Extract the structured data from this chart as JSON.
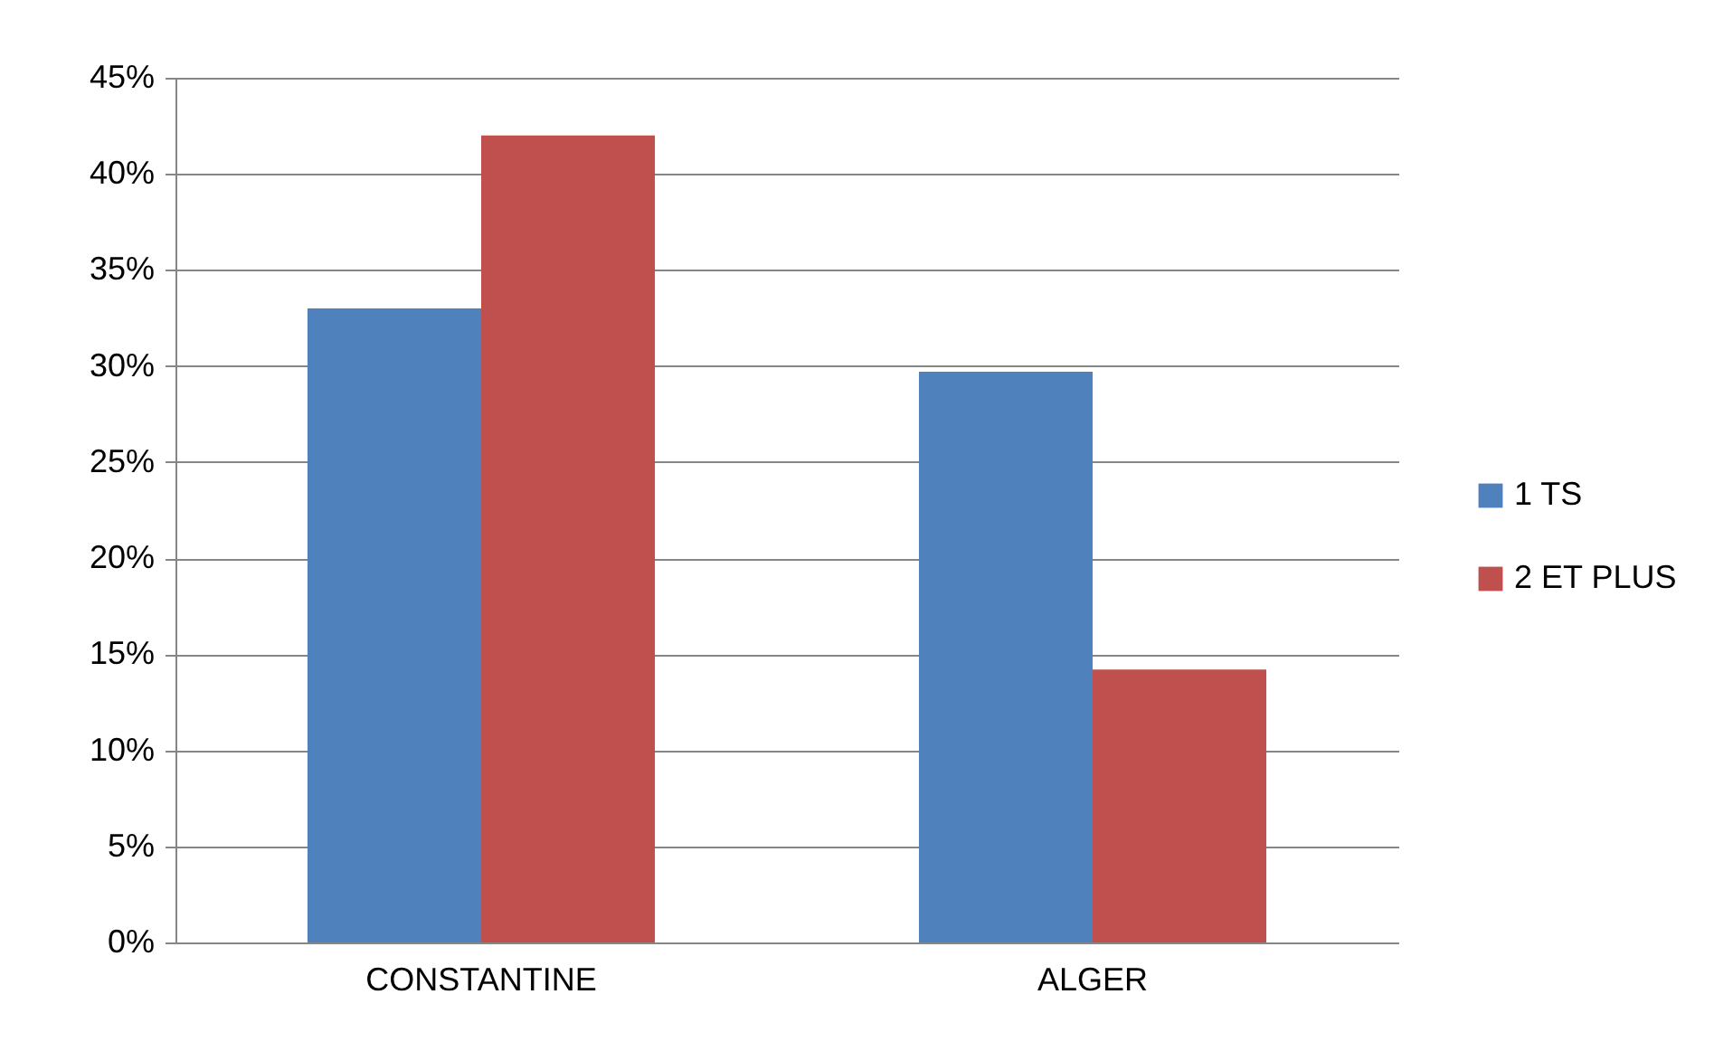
{
  "chart_data": {
    "type": "bar",
    "categories": [
      "CONSTANTINE",
      "ALGER"
    ],
    "series": [
      {
        "name": "1 TS",
        "color": "#4f81bd",
        "values": [
          33,
          29.7
        ]
      },
      {
        "name": "2 ET PLUS",
        "color": "#c0504d",
        "values": [
          42,
          14.2
        ]
      }
    ],
    "ylim": [
      0,
      45
    ],
    "yticks": [
      {
        "value": 0,
        "label": "0%"
      },
      {
        "value": 5,
        "label": "5%"
      },
      {
        "value": 10,
        "label": "10%"
      },
      {
        "value": 15,
        "label": "15%"
      },
      {
        "value": 20,
        "label": "20%"
      },
      {
        "value": 25,
        "label": "25%"
      },
      {
        "value": 30,
        "label": "30%"
      },
      {
        "value": 35,
        "label": "35%"
      },
      {
        "value": 40,
        "label": "40%"
      },
      {
        "value": 45,
        "label": "45%"
      }
    ],
    "grid": "y",
    "legend": "right"
  }
}
